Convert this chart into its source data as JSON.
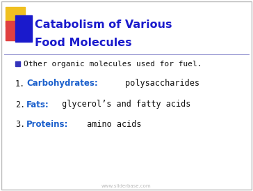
{
  "title_line1": "Catabolism of Various",
  "title_line2": "Food Molecules",
  "title_color": "#1a1acc",
  "background_color": "#ffffff",
  "border_color": "#bbbbbb",
  "bullet_text": "Other organic molecules used for fuel.",
  "bullet_color": "#111111",
  "bullet_marker_color": "#3333bb",
  "numbered_items": [
    {
      "number": "1.",
      "bold_text": "Carbohydrates:",
      "rest_text": " polysaccharides"
    },
    {
      "number": "2.",
      "bold_text": "Fats:",
      "rest_text": " glycerol’s and fatty acids"
    },
    {
      "number": "3.",
      "bold_text": "Proteins:",
      "rest_text": " amino acids"
    }
  ],
  "numbered_bold_color": "#1a5fcc",
  "numbered_text_color": "#111111",
  "watermark": "www.sliderbase.com",
  "watermark_color": "#bbbbbb",
  "decoration_yellow": "#f0c020",
  "decoration_red": "#e04040",
  "decoration_blue": "#1a1acc",
  "title_fontsize": 11.5,
  "bullet_fontsize": 8.0,
  "numbered_fontsize": 8.5
}
